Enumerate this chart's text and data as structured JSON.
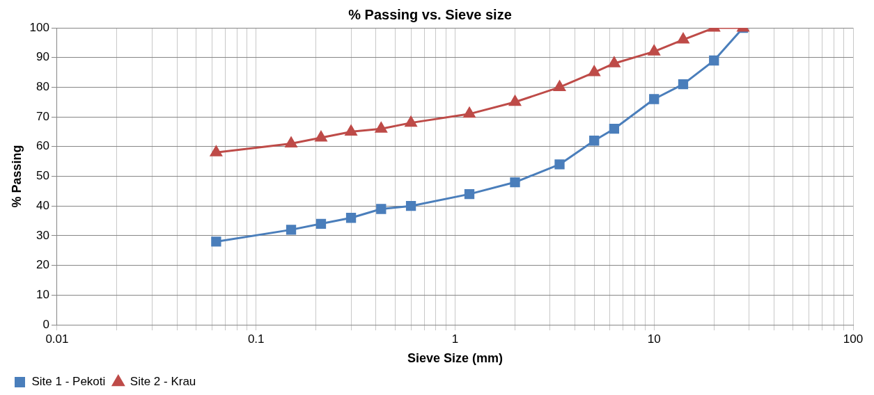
{
  "chart_data": {
    "type": "line",
    "title": "% Passing vs. Sieve size",
    "xlabel": "Sieve Size (mm)",
    "ylabel": "% Passing",
    "log": "x",
    "grid": true,
    "legend": "bottom left",
    "line_style": "solid",
    "xlim": [
      0.01,
      100
    ],
    "ylim": [
      0,
      100
    ],
    "xticks": [
      0.01,
      {
        "value": 0.02,
        "label": null
      },
      {
        "value": 0.03,
        "label": null
      },
      {
        "value": 0.04,
        "label": null
      },
      {
        "value": 0.05,
        "label": null
      },
      {
        "value": 0.06,
        "label": null
      },
      {
        "value": 0.07,
        "label": null
      },
      {
        "value": 0.08,
        "label": null
      },
      {
        "value": 0.09,
        "label": null
      },
      0.1,
      {
        "value": 0.2,
        "label": null
      },
      {
        "value": 0.3,
        "label": null
      },
      {
        "value": 0.4,
        "label": null
      },
      {
        "value": 0.5,
        "label": null
      },
      {
        "value": 0.6,
        "label": null
      },
      {
        "value": 0.7,
        "label": null
      },
      {
        "value": 0.8,
        "label": null
      },
      {
        "value": 0.9,
        "label": null
      },
      1,
      {
        "value": 2,
        "label": null
      },
      {
        "value": 3,
        "label": null
      },
      {
        "value": 4,
        "label": null
      },
      {
        "value": 5,
        "label": null
      },
      {
        "value": 6,
        "label": null
      },
      {
        "value": 7,
        "label": null
      },
      {
        "value": 8,
        "label": null
      },
      {
        "value": 9,
        "label": null
      },
      10,
      {
        "value": 20,
        "label": null
      },
      {
        "value": 30,
        "label": null
      },
      {
        "value": 40,
        "label": null
      },
      {
        "value": 50,
        "label": null
      },
      {
        "value": 60,
        "label": null
      },
      {
        "value": 70,
        "label": null
      },
      {
        "value": 80,
        "label": null
      },
      {
        "value": 90,
        "label": null
      },
      100
    ],
    "yticks": [
      0,
      10,
      20,
      30,
      40,
      50,
      60,
      70,
      80,
      90,
      100
    ],
    "x": [
      0.063,
      0.15,
      0.212,
      0.3,
      0.425,
      0.6,
      1.18,
      2,
      3.35,
      5,
      6.3,
      10,
      14,
      20,
      28
    ],
    "series": [
      {
        "name": "Site 1 - Pekoti",
        "color": "#4a7ebb",
        "marker": "square",
        "values": [
          28,
          32,
          34,
          36,
          39,
          40,
          44,
          48,
          54,
          62,
          66,
          76,
          81,
          89,
          100
        ]
      },
      {
        "name": "Site 2 - Krau",
        "color": "#be4b48",
        "marker": "triangle",
        "values": [
          58,
          61,
          63,
          65,
          66,
          68,
          71,
          75,
          80,
          85,
          88,
          92,
          96,
          100,
          100
        ]
      }
    ]
  }
}
